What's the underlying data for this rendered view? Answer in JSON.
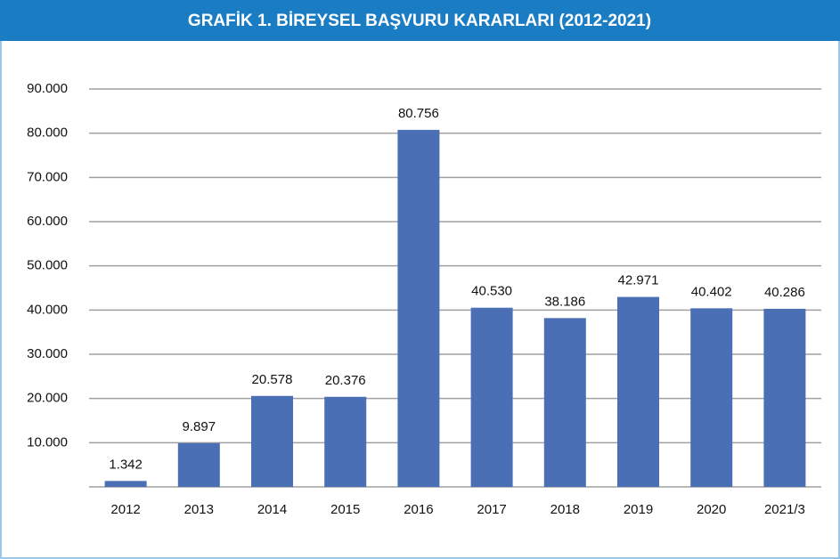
{
  "chart_data": {
    "type": "bar",
    "title": "GRAFİK 1. BİREYSEL BAŞVURU KARARLARI (2012-2021)",
    "categories": [
      "2012",
      "2013",
      "2014",
      "2015",
      "2016",
      "2017",
      "2018",
      "2019",
      "2020",
      "2021/3"
    ],
    "values": [
      1342,
      9897,
      20578,
      20376,
      80756,
      40530,
      38186,
      42971,
      40402,
      40286
    ],
    "value_labels": [
      "1.342",
      "9.897",
      "20.578",
      "20.376",
      "80.756",
      "40.530",
      "38.186",
      "42.971",
      "40.402",
      "40.286"
    ],
    "color": "#4a6fb5",
    "ylim": [
      0,
      90000
    ],
    "yticks": [
      {
        "value": 10000,
        "label": "10.000"
      },
      {
        "value": 20000,
        "label": "20.000"
      },
      {
        "value": 30000,
        "label": "30.000"
      },
      {
        "value": 40000,
        "label": "40.000"
      },
      {
        "value": 50000,
        "label": "50.000"
      },
      {
        "value": 60000,
        "label": "60.000"
      },
      {
        "value": 70000,
        "label": "70.000"
      },
      {
        "value": 80000,
        "label": "80.000"
      },
      {
        "value": 90000,
        "label": "90.000"
      }
    ],
    "grid": true
  }
}
